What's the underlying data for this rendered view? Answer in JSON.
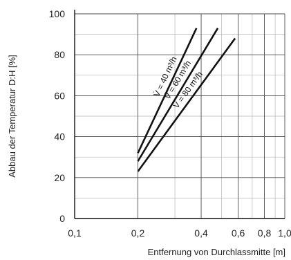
{
  "chart_data": {
    "type": "line",
    "xlabel": "Entfernung von Durchlassmitte [m]",
    "ylabel": "Abbau der Temperatur D:H [%]",
    "x_scale": "log",
    "xlim": [
      0.1,
      1.0
    ],
    "ylim": [
      0,
      100
    ],
    "x_ticks": [
      0.1,
      0.2,
      0.4,
      0.6,
      0.8,
      1.0
    ],
    "x_tick_labels": [
      "0,1",
      "0,2",
      "0,4",
      "0,6",
      "0,8",
      "1,0"
    ],
    "y_ticks": [
      0,
      20,
      40,
      60,
      80,
      100
    ],
    "y_tick_labels": [
      "0",
      "20",
      "40",
      "60",
      "80",
      "100"
    ],
    "grid": true,
    "series": [
      {
        "name": "V̇ = 40 m³/h",
        "x": [
          0.2,
          0.38
        ],
        "y": [
          32,
          93
        ]
      },
      {
        "name": "V̇ = 60 m³/h",
        "x": [
          0.2,
          0.48
        ],
        "y": [
          28,
          93
        ]
      },
      {
        "name": "V̇ = 80 m³/h",
        "x": [
          0.2,
          0.58
        ],
        "y": [
          23,
          88
        ]
      }
    ],
    "annotations": [
      "V̇ = 40 m³/h",
      "V̇ = 60 m³/h",
      "V̇ = 80 m³/h"
    ]
  }
}
